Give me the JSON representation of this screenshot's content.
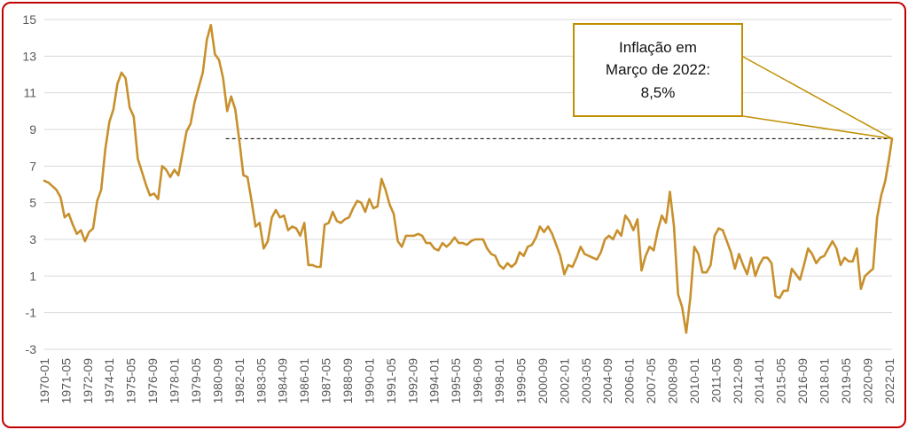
{
  "frame": {
    "border_color": "#c00000",
    "background": "#ffffff"
  },
  "chart_data": {
    "type": "line",
    "title": "",
    "xlabel": "",
    "ylabel": "",
    "grid": true,
    "legend": false,
    "ylim": [
      -3,
      15
    ],
    "yticks": [
      15,
      13,
      11,
      9,
      7,
      5,
      3,
      1,
      -1,
      -3
    ],
    "x_start": "1970-01",
    "x_step_months": 3,
    "x_end": "2022-03",
    "values": [
      6.2,
      6.1,
      5.9,
      5.7,
      5.3,
      4.2,
      4.4,
      3.8,
      3.3,
      3.5,
      2.9,
      3.4,
      3.6,
      5.1,
      5.7,
      7.9,
      9.4,
      10.1,
      11.5,
      12.1,
      11.8,
      10.2,
      9.7,
      7.4,
      6.7,
      6.0,
      5.4,
      5.5,
      5.2,
      7.0,
      6.8,
      6.4,
      6.8,
      6.5,
      7.7,
      8.9,
      9.3,
      10.5,
      11.3,
      12.1,
      13.9,
      14.7,
      13.1,
      12.8,
      11.8,
      10.0,
      10.8,
      10.1,
      8.4,
      6.5,
      6.4,
      5.1,
      3.7,
      3.9,
      2.5,
      2.9,
      4.2,
      4.6,
      4.2,
      4.3,
      3.5,
      3.7,
      3.6,
      3.2,
      3.9,
      1.6,
      1.6,
      1.5,
      1.5,
      3.8,
      3.9,
      4.5,
      4.0,
      3.9,
      4.1,
      4.2,
      4.7,
      5.1,
      5.0,
      4.5,
      5.2,
      4.7,
      4.8,
      6.3,
      5.7,
      4.9,
      4.4,
      2.9,
      2.6,
      3.2,
      3.2,
      3.2,
      3.3,
      3.2,
      2.8,
      2.8,
      2.5,
      2.4,
      2.8,
      2.6,
      2.8,
      3.1,
      2.8,
      2.8,
      2.7,
      2.9,
      3.0,
      3.0,
      3.0,
      2.5,
      2.2,
      2.1,
      1.6,
      1.4,
      1.7,
      1.5,
      1.7,
      2.3,
      2.1,
      2.6,
      2.7,
      3.1,
      3.7,
      3.4,
      3.7,
      3.3,
      2.7,
      2.1,
      1.1,
      1.6,
      1.5,
      2.0,
      2.6,
      2.2,
      2.1,
      2.0,
      1.9,
      2.3,
      3.0,
      3.2,
      3.0,
      3.5,
      3.2,
      4.3,
      4.0,
      3.5,
      4.1,
      1.3,
      2.1,
      2.6,
      2.4,
      3.5,
      4.3,
      3.9,
      5.6,
      3.7,
      0.0,
      -0.7,
      -2.1,
      -0.2,
      2.6,
      2.2,
      1.2,
      1.2,
      1.6,
      3.2,
      3.6,
      3.5,
      2.9,
      2.3,
      1.4,
      2.2,
      1.6,
      1.1,
      2.0,
      1.0,
      1.6,
      2.0,
      2.0,
      1.7,
      -0.1,
      -0.2,
      0.2,
      0.2,
      1.4,
      1.1,
      0.8,
      1.6,
      2.5,
      2.2,
      1.7,
      2.0,
      2.1,
      2.5,
      2.9,
      2.5,
      1.6,
      2.0,
      1.8,
      1.8,
      2.5,
      0.3,
      1.0,
      1.2,
      1.4,
      4.2,
      5.4,
      6.2,
      7.5
    ],
    "final_point": {
      "x": "2022-03",
      "value": 8.5
    },
    "xtick_step_months": 16,
    "xtick_labels": [
      "1970-01",
      "1971-05",
      "1972-09",
      "1974-01",
      "1975-05",
      "1976-09",
      "1978-01",
      "1979-05",
      "1980-09",
      "1982-01",
      "1983-05",
      "1984-09",
      "1986-01",
      "1987-05",
      "1988-09",
      "1990-01",
      "1991-05",
      "1992-09",
      "1994-01",
      "1995-05",
      "1996-09",
      "1998-01",
      "1999-05",
      "2000-09",
      "2002-01",
      "2003-05",
      "2004-09",
      "2006-01",
      "2007-05",
      "2008-09",
      "2010-01",
      "2011-05",
      "2012-09",
      "2014-01",
      "2015-05",
      "2016-09",
      "2018-01",
      "2019-05",
      "2020-09",
      "2022-01"
    ],
    "line_color": "#c8902c",
    "grid_color": "#d9d9d9",
    "tick_label_color": "#595959",
    "reference_line": {
      "value": 8.5,
      "start": "1981-03",
      "style": "dashed",
      "color": "#000000"
    }
  },
  "annotation": {
    "lines": [
      "Inflação em",
      "Março de 2022:",
      "8,5%"
    ],
    "border_color": "#bf8f00"
  }
}
